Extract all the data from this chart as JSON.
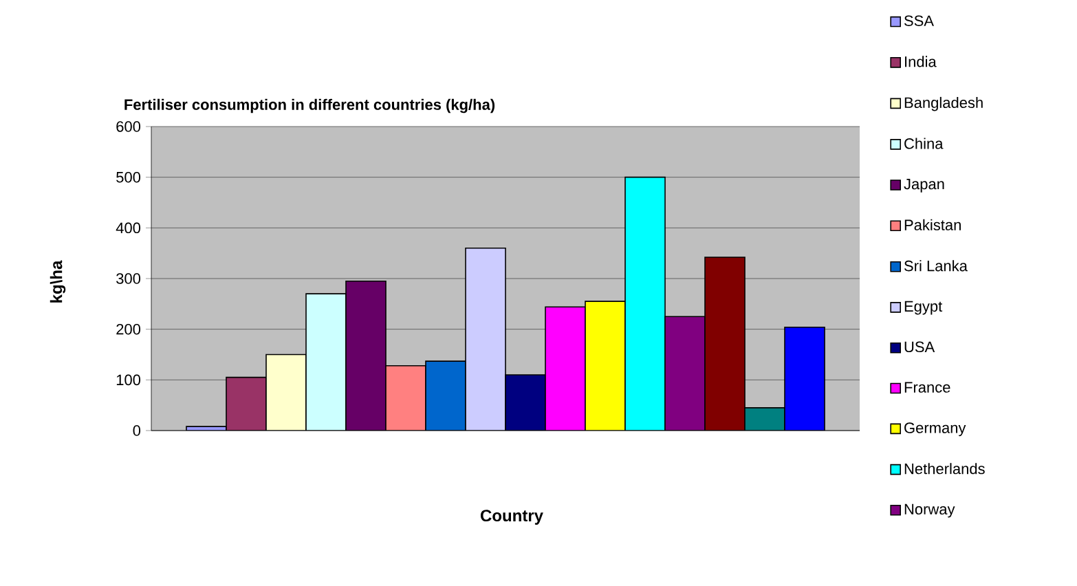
{
  "chart_data": {
    "type": "bar",
    "title": "Fertiliser consumption in different countries (kg/ha)",
    "xlabel": "Country",
    "ylabel": "kg\\ha",
    "categories": [
      null
    ],
    "series": [
      {
        "name": "SSA",
        "color": "#9999ff",
        "values": [
          8
        ]
      },
      {
        "name": "India",
        "color": "#993366",
        "values": [
          105
        ]
      },
      {
        "name": "Bangladesh",
        "color": "#ffffcc",
        "values": [
          150
        ]
      },
      {
        "name": "China",
        "color": "#ccffff",
        "values": [
          270
        ]
      },
      {
        "name": "Japan",
        "color": "#660066",
        "values": [
          295
        ]
      },
      {
        "name": "Pakistan",
        "color": "#ff8080",
        "values": [
          128
        ]
      },
      {
        "name": "Sri Lanka",
        "color": "#0066cc",
        "values": [
          137
        ]
      },
      {
        "name": "Egypt",
        "color": "#ccccff",
        "values": [
          360
        ]
      },
      {
        "name": "USA",
        "color": "#000080",
        "values": [
          110
        ]
      },
      {
        "name": "France",
        "color": "#ff00ff",
        "values": [
          244
        ]
      },
      {
        "name": "Germany",
        "color": "#ffff00",
        "values": [
          255
        ]
      },
      {
        "name": "Netherlands",
        "color": "#00ffff",
        "values": [
          500
        ]
      },
      {
        "name": "Norway",
        "color": "#800080",
        "values": [
          225
        ]
      },
      {
        "color": "#800000",
        "values": [
          342
        ]
      },
      {
        "color": "#008080",
        "values": [
          45
        ]
      },
      {
        "color": "#0000ff",
        "values": [
          204
        ]
      }
    ],
    "ylim": [
      0,
      600
    ],
    "yticks": [
      0,
      100,
      200,
      300,
      400,
      500,
      600
    ],
    "grid": "y",
    "legend": "right",
    "tick_labels": "y"
  }
}
